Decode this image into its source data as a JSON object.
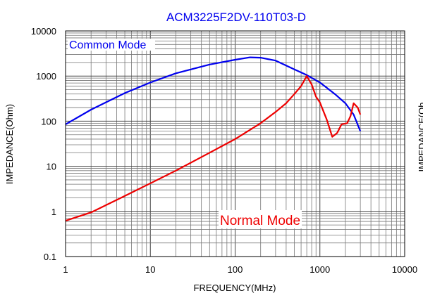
{
  "chart_data": {
    "type": "line",
    "title": "ACM3225F2DV-110T03-D",
    "xlabel": "FREQUENCY(MHz)",
    "ylabel": "IMPEDANCE(Ohm)",
    "right_ylabel_fragment": "IMPEDANCE(Oh",
    "xscale": "log",
    "yscale": "log",
    "xlim": [
      1,
      10000
    ],
    "ylim": [
      0.1,
      10000
    ],
    "x_ticks": [
      "1",
      "10",
      "100",
      "1000",
      "10000"
    ],
    "y_ticks": [
      "0.1",
      "1",
      "10",
      "100",
      "1000",
      "10000"
    ],
    "grid": true,
    "legend": "in-plot labels",
    "series": [
      {
        "name": "Common Mode",
        "color": "#0000ee",
        "label_placement": "top-left",
        "points": [
          [
            1,
            85
          ],
          [
            2,
            180
          ],
          [
            5,
            420
          ],
          [
            10,
            720
          ],
          [
            20,
            1150
          ],
          [
            50,
            1800
          ],
          [
            100,
            2300
          ],
          [
            150,
            2600
          ],
          [
            200,
            2550
          ],
          [
            300,
            2200
          ],
          [
            500,
            1400
          ],
          [
            700,
            1050
          ],
          [
            1000,
            720
          ],
          [
            1500,
            400
          ],
          [
            2000,
            250
          ],
          [
            2500,
            140
          ],
          [
            3000,
            60
          ]
        ]
      },
      {
        "name": "Normal Mode",
        "color": "#ee0000",
        "label_placement": "bottom-center",
        "points": [
          [
            1,
            0.62
          ],
          [
            2,
            0.95
          ],
          [
            5,
            2.2
          ],
          [
            10,
            4.2
          ],
          [
            20,
            8
          ],
          [
            50,
            20
          ],
          [
            100,
            40
          ],
          [
            200,
            90
          ],
          [
            300,
            160
          ],
          [
            400,
            250
          ],
          [
            500,
            400
          ],
          [
            600,
            600
          ],
          [
            700,
            1000
          ],
          [
            800,
            650
          ],
          [
            900,
            350
          ],
          [
            1000,
            260
          ],
          [
            1200,
            110
          ],
          [
            1400,
            45
          ],
          [
            1600,
            55
          ],
          [
            1800,
            85
          ],
          [
            2100,
            90
          ],
          [
            2300,
            130
          ],
          [
            2500,
            250
          ],
          [
            2800,
            200
          ],
          [
            3000,
            140
          ]
        ]
      }
    ]
  }
}
